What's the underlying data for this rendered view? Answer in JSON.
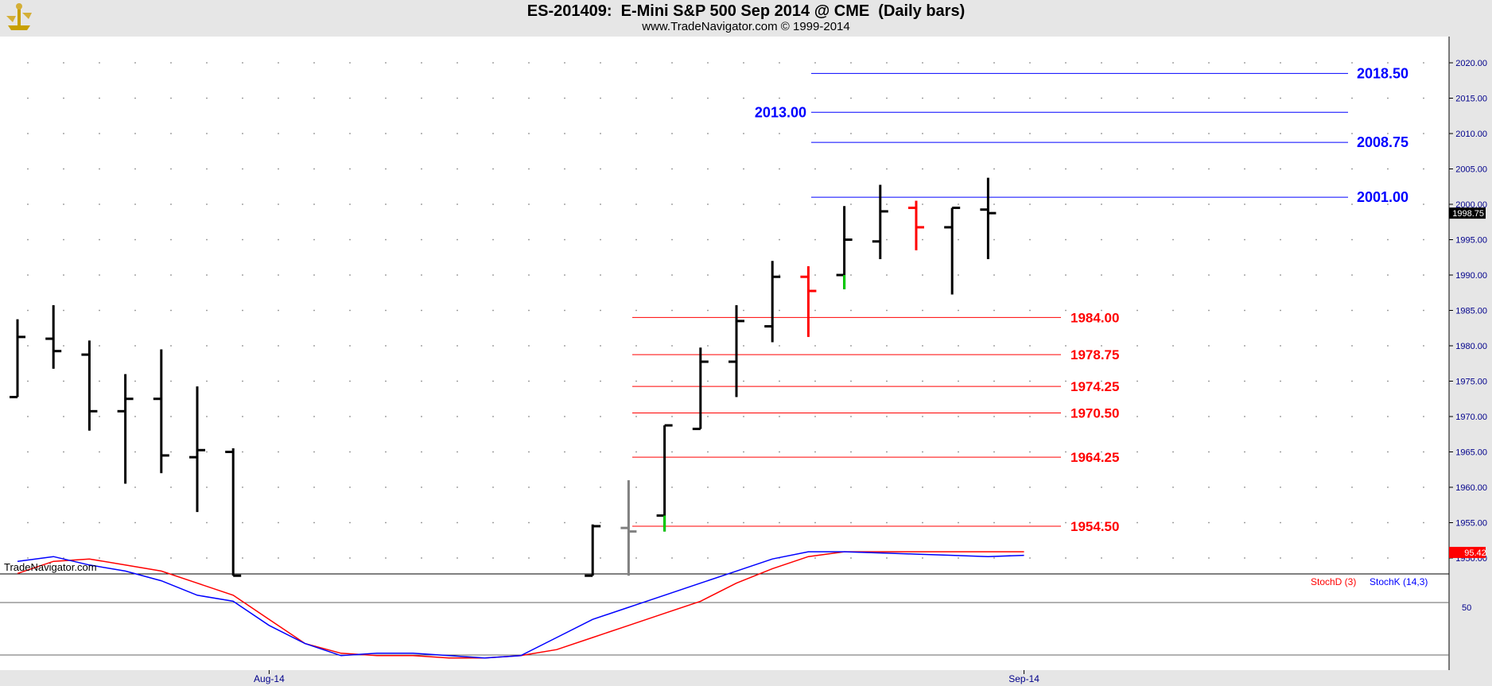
{
  "header": {
    "title": "ES-201409:  E-Mini S&P 500 Sep 2014 @ CME  (Daily bars)",
    "subtitle": "www.TradeNavigator.com © 1999-2014"
  },
  "watermark": "TradeNavigator.com",
  "colors": {
    "bar": "#000000",
    "down_bar": "#ff0000",
    "resistance": "#0000ff",
    "support": "#ff0000",
    "stoch_d": "#ff0000",
    "stoch_k": "#0000ff"
  },
  "chart_data": [
    {
      "type": "bar",
      "subtype": "ohlc",
      "title": "ES-201409:  E-Mini S&P 500 Sep 2014 @ CME  (Daily bars)",
      "ylim": [
        1947.5,
        2024.5
      ],
      "yticks": [
        "1950.00",
        "1955.00",
        "1960.00",
        "1965.00",
        "1970.00",
        "1975.00",
        "1980.00",
        "1985.00",
        "1990.00",
        "1995.00",
        "2000.00",
        "2005.00",
        "2010.00",
        "2015.00",
        "2020.00"
      ],
      "xticks": [
        {
          "label": "Aug-14",
          "index": 7
        },
        {
          "label": "Sep-14",
          "index": 28
        }
      ],
      "last_price": "1998.75",
      "bars": [
        {
          "o": 1972.75,
          "h": 1983.75,
          "l": 1972.75,
          "c": 1981.25
        },
        {
          "o": 1981.0,
          "h": 1985.75,
          "l": 1976.75,
          "c": 1979.25
        },
        {
          "o": 1978.75,
          "h": 1980.75,
          "l": 1968.0,
          "c": 1970.75
        },
        {
          "o": 1970.75,
          "h": 1976.0,
          "l": 1960.5,
          "c": 1972.5
        },
        {
          "o": 1972.5,
          "h": 1979.5,
          "l": 1962.0,
          "c": 1964.5
        },
        {
          "o": 1964.25,
          "h": 1974.25,
          "l": 1956.5,
          "c": 1965.25
        },
        {
          "o": 1965.0,
          "h": 1965.5,
          "l": 1947.5,
          "c": 1947.5
        },
        null,
        null,
        null,
        null,
        null,
        null,
        null,
        null,
        null,
        {
          "o": 1947.5,
          "h": 1954.75,
          "l": 1947.5,
          "c": 1954.5
        },
        {
          "o": 1954.25,
          "h": 1961.0,
          "l": 1947.5,
          "c": 1953.75
        },
        {
          "o": 1956.0,
          "h": 1968.75,
          "l": 1953.75,
          "c": 1968.75
        },
        {
          "o": 1968.25,
          "h": 1979.75,
          "l": 1968.25,
          "c": 1977.75
        },
        {
          "o": 1977.75,
          "h": 1985.75,
          "l": 1972.75,
          "c": 1983.5
        },
        {
          "o": 1982.75,
          "h": 1992.0,
          "l": 1980.5,
          "c": 1989.75
        },
        {
          "o": 1989.75,
          "h": 1991.25,
          "l": 1981.25,
          "c": 1987.75
        },
        {
          "o": 1990.0,
          "h": 1999.75,
          "l": 1988.0,
          "c": 1995.0
        },
        {
          "o": 1994.75,
          "h": 2002.75,
          "l": 1992.25,
          "c": 1999.0
        },
        {
          "o": 1999.5,
          "h": 2000.5,
          "l": 1993.5,
          "c": 1996.75
        },
        {
          "o": 1996.75,
          "h": 1999.5,
          "l": 1987.25,
          "c": 1999.5
        },
        {
          "o": 1999.25,
          "h": 2003.75,
          "l": 1992.25,
          "c": 1998.75
        }
      ],
      "resistance_levels": [
        "2018.50",
        "2013.00",
        "2008.75",
        "2001.00"
      ],
      "support_levels": [
        "1984.00",
        "1978.75",
        "1974.25",
        "1970.50",
        "1964.25",
        "1954.50"
      ]
    },
    {
      "type": "line",
      "title": "",
      "legend": [
        "StochD (3)",
        "StochK (14,3)"
      ],
      "ylim": [
        0,
        100
      ],
      "yticks": [
        "50"
      ],
      "last_value": "95.42",
      "series": [
        {
          "name": "StochD (3)",
          "values": [
            78,
            88,
            90,
            85,
            80,
            70,
            60,
            40,
            20,
            12,
            10,
            10,
            8,
            8,
            10,
            15,
            25,
            35,
            45,
            55,
            70,
            82,
            92,
            96,
            96,
            96,
            96,
            96,
            96
          ]
        },
        {
          "name": "StochK (14,3)",
          "values": [
            88,
            92,
            85,
            80,
            72,
            60,
            55,
            35,
            20,
            10,
            12,
            12,
            10,
            8,
            10,
            25,
            40,
            50,
            60,
            70,
            80,
            90,
            96,
            96,
            95,
            94,
            93,
            92,
            93
          ]
        }
      ]
    }
  ]
}
